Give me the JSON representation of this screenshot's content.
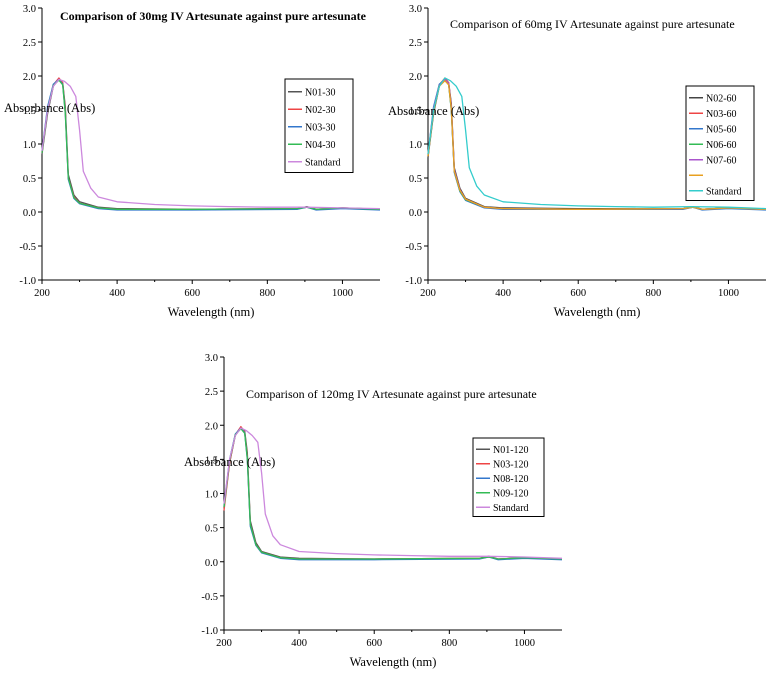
{
  "chart_data": [
    {
      "type": "line",
      "title": "Comparison of 30mg IV Artesunate against pure artesunate",
      "title_bold": true,
      "xlabel": "Wavelength (nm)",
      "ylabel": "Absorbance (Abs)",
      "xlim": [
        200,
        1100
      ],
      "ylim": [
        -1.0,
        3.0
      ],
      "xticks": [
        200,
        400,
        600,
        800,
        1000
      ],
      "yticks": [
        "-1.0",
        "-0.5",
        "0.0",
        "0.5",
        "1.0",
        "1.5",
        "2.0",
        "2.5",
        "3.0"
      ],
      "grid": false,
      "legend_position": "right",
      "series": [
        {
          "name": "N01-30",
          "color": "#555555",
          "x": [
            200,
            215,
            230,
            245,
            255,
            262,
            270,
            285,
            300,
            350,
            400,
            600,
            880,
            905,
            930,
            1000,
            1100
          ],
          "y": [
            0.85,
            1.45,
            1.85,
            1.96,
            1.9,
            1.55,
            0.55,
            0.25,
            0.15,
            0.07,
            0.05,
            0.04,
            0.05,
            0.08,
            0.04,
            0.06,
            0.04
          ]
        },
        {
          "name": "N02-30",
          "color": "#ee4444",
          "x": [
            200,
            215,
            230,
            245,
            255,
            262,
            270,
            285,
            300,
            350,
            400,
            600,
            880,
            905,
            930,
            1000,
            1100
          ],
          "y": [
            0.88,
            1.5,
            1.87,
            1.97,
            1.9,
            1.5,
            0.5,
            0.22,
            0.13,
            0.06,
            0.04,
            0.04,
            0.05,
            0.07,
            0.04,
            0.06,
            0.04
          ]
        },
        {
          "name": "N03-30",
          "color": "#3377cc",
          "x": [
            200,
            215,
            230,
            245,
            255,
            262,
            270,
            285,
            300,
            350,
            400,
            600,
            880,
            905,
            930,
            1000,
            1100
          ],
          "y": [
            0.9,
            1.55,
            1.88,
            1.95,
            1.88,
            1.45,
            0.48,
            0.2,
            0.12,
            0.05,
            0.03,
            0.03,
            0.04,
            0.07,
            0.03,
            0.05,
            0.03
          ]
        },
        {
          "name": "N04-30",
          "color": "#33bb55",
          "x": [
            200,
            215,
            230,
            245,
            255,
            262,
            270,
            285,
            300,
            350,
            400,
            600,
            880,
            905,
            930,
            1000,
            1100
          ],
          "y": [
            0.87,
            1.5,
            1.86,
            1.94,
            1.87,
            1.45,
            0.5,
            0.21,
            0.13,
            0.06,
            0.04,
            0.04,
            0.05,
            0.07,
            0.04,
            0.06,
            0.04
          ]
        },
        {
          "name": "Standard",
          "color": "#cc88dd",
          "x": [
            200,
            215,
            230,
            245,
            260,
            275,
            290,
            300,
            310,
            330,
            350,
            400,
            500,
            600,
            700,
            800,
            900,
            1000,
            1100
          ],
          "y": [
            0.9,
            1.5,
            1.85,
            1.95,
            1.92,
            1.85,
            1.7,
            1.2,
            0.6,
            0.35,
            0.22,
            0.15,
            0.11,
            0.09,
            0.08,
            0.07,
            0.07,
            0.06,
            0.05
          ]
        }
      ]
    },
    {
      "type": "line",
      "title": "Comparison of 60mg IV Artesunate against pure artesunate",
      "title_bold": false,
      "xlabel": "Wavelength (nm)",
      "ylabel": "Absorbance (Abs)",
      "xlim": [
        200,
        1100
      ],
      "ylim": [
        -1.0,
        3.0
      ],
      "xticks": [
        200,
        400,
        600,
        800,
        1000
      ],
      "yticks": [
        "-1.0",
        "-0.5",
        "0.0",
        "0.5",
        "1.0",
        "1.5",
        "2.0",
        "2.5",
        "3.0"
      ],
      "grid": false,
      "legend_position": "right",
      "series": [
        {
          "name": "N02-60",
          "color": "#444444",
          "x": [
            200,
            215,
            230,
            245,
            255,
            262,
            270,
            285,
            300,
            350,
            400,
            600,
            880,
            905,
            930,
            1000,
            1100
          ],
          "y": [
            0.8,
            1.45,
            1.85,
            1.96,
            1.9,
            1.6,
            0.65,
            0.35,
            0.2,
            0.08,
            0.06,
            0.05,
            0.05,
            0.08,
            0.04,
            0.06,
            0.04
          ]
        },
        {
          "name": "N03-60",
          "color": "#ee4444",
          "x": [
            200,
            215,
            230,
            245,
            255,
            262,
            270,
            285,
            300,
            350,
            400,
            600,
            880,
            905,
            930,
            1000,
            1100
          ],
          "y": [
            0.82,
            1.5,
            1.87,
            1.97,
            1.9,
            1.55,
            0.6,
            0.32,
            0.18,
            0.07,
            0.05,
            0.04,
            0.05,
            0.07,
            0.04,
            0.06,
            0.04
          ]
        },
        {
          "name": "N05-60",
          "color": "#3377cc",
          "x": [
            200,
            215,
            230,
            245,
            255,
            262,
            270,
            285,
            300,
            350,
            400,
            600,
            880,
            905,
            930,
            1000,
            1100
          ],
          "y": [
            0.85,
            1.55,
            1.88,
            1.95,
            1.88,
            1.5,
            0.58,
            0.3,
            0.17,
            0.06,
            0.04,
            0.04,
            0.04,
            0.07,
            0.03,
            0.05,
            0.03
          ]
        },
        {
          "name": "N06-60",
          "color": "#33bb55",
          "x": [
            200,
            215,
            230,
            245,
            255,
            262,
            270,
            285,
            300,
            350,
            400,
            600,
            880,
            905,
            930,
            1000,
            1100
          ],
          "y": [
            0.83,
            1.5,
            1.86,
            1.94,
            1.87,
            1.5,
            0.6,
            0.31,
            0.18,
            0.07,
            0.05,
            0.04,
            0.05,
            0.07,
            0.04,
            0.06,
            0.04
          ]
        },
        {
          "name": "N07-60",
          "color": "#aa55cc",
          "x": [
            200,
            215,
            230,
            245,
            255,
            262,
            270,
            285,
            300,
            350,
            400,
            600,
            880,
            905,
            930,
            1000,
            1100
          ],
          "y": [
            0.84,
            1.52,
            1.86,
            1.95,
            1.89,
            1.55,
            0.62,
            0.33,
            0.19,
            0.07,
            0.05,
            0.04,
            0.05,
            0.07,
            0.04,
            0.06,
            0.04
          ]
        },
        {
          "name": "",
          "color": "#e8a020",
          "x": [
            200,
            215,
            230,
            245,
            255,
            262,
            270,
            285,
            300,
            350,
            400,
            600,
            880,
            905,
            930,
            1000,
            1100
          ],
          "y": [
            0.82,
            1.48,
            1.85,
            1.93,
            1.87,
            1.52,
            0.6,
            0.32,
            0.19,
            0.07,
            0.05,
            0.04,
            0.05,
            0.07,
            0.04,
            0.06,
            0.04
          ]
        },
        {
          "name": "Standard",
          "color": "#33cccc",
          "x": [
            200,
            215,
            230,
            245,
            260,
            275,
            290,
            300,
            310,
            330,
            350,
            400,
            500,
            600,
            700,
            800,
            900,
            1000,
            1100
          ],
          "y": [
            0.85,
            1.5,
            1.85,
            1.97,
            1.93,
            1.85,
            1.7,
            1.2,
            0.65,
            0.38,
            0.25,
            0.15,
            0.11,
            0.09,
            0.08,
            0.07,
            0.08,
            0.07,
            0.05
          ]
        }
      ]
    },
    {
      "type": "line",
      "title": "Comparison of 120mg IV Artesunate against pure artesunate",
      "title_bold": false,
      "xlabel": "Wavelength (nm)",
      "ylabel": "Absorbance (Abs)",
      "xlim": [
        200,
        1100
      ],
      "ylim": [
        -1.0,
        3.0
      ],
      "xticks": [
        200,
        400,
        600,
        800,
        1000
      ],
      "yticks": [
        "-1.0",
        "-0.5",
        "0.0",
        "0.5",
        "1.0",
        "1.5",
        "2.0",
        "2.5",
        "3.0"
      ],
      "grid": false,
      "legend_position": "right",
      "series": [
        {
          "name": "N01-120",
          "color": "#555555",
          "x": [
            200,
            215,
            230,
            245,
            255,
            262,
            270,
            285,
            300,
            350,
            400,
            600,
            880,
            905,
            930,
            1000,
            1100
          ],
          "y": [
            0.8,
            1.45,
            1.85,
            1.97,
            1.92,
            1.6,
            0.6,
            0.28,
            0.15,
            0.07,
            0.05,
            0.04,
            0.05,
            0.08,
            0.04,
            0.06,
            0.04
          ]
        },
        {
          "name": "N03-120",
          "color": "#ee4444",
          "x": [
            200,
            215,
            230,
            245,
            255,
            262,
            270,
            285,
            300,
            350,
            400,
            600,
            880,
            905,
            930,
            1000,
            1100
          ],
          "y": [
            0.75,
            1.45,
            1.86,
            1.98,
            1.9,
            1.55,
            0.55,
            0.25,
            0.14,
            0.06,
            0.04,
            0.04,
            0.05,
            0.07,
            0.04,
            0.06,
            0.04
          ]
        },
        {
          "name": "N08-120",
          "color": "#3377cc",
          "x": [
            200,
            215,
            230,
            245,
            255,
            262,
            270,
            285,
            300,
            350,
            400,
            600,
            880,
            905,
            930,
            1000,
            1100
          ],
          "y": [
            0.82,
            1.5,
            1.87,
            1.96,
            1.89,
            1.5,
            0.52,
            0.24,
            0.13,
            0.05,
            0.03,
            0.03,
            0.04,
            0.07,
            0.03,
            0.05,
            0.03
          ]
        },
        {
          "name": "N09-120",
          "color": "#33bb55",
          "x": [
            200,
            215,
            230,
            245,
            255,
            262,
            270,
            285,
            300,
            350,
            400,
            600,
            880,
            905,
            930,
            1000,
            1100
          ],
          "y": [
            0.8,
            1.48,
            1.86,
            1.95,
            1.88,
            1.52,
            0.55,
            0.25,
            0.14,
            0.06,
            0.04,
            0.04,
            0.05,
            0.07,
            0.04,
            0.06,
            0.04
          ]
        },
        {
          "name": "Standard",
          "color": "#cc88dd",
          "x": [
            200,
            215,
            230,
            245,
            260,
            275,
            290,
            300,
            310,
            330,
            350,
            400,
            500,
            600,
            700,
            800,
            900,
            1000,
            1100
          ],
          "y": [
            0.85,
            1.5,
            1.85,
            1.96,
            1.92,
            1.85,
            1.75,
            1.3,
            0.7,
            0.38,
            0.25,
            0.15,
            0.12,
            0.1,
            0.09,
            0.08,
            0.08,
            0.07,
            0.05
          ]
        }
      ]
    }
  ]
}
